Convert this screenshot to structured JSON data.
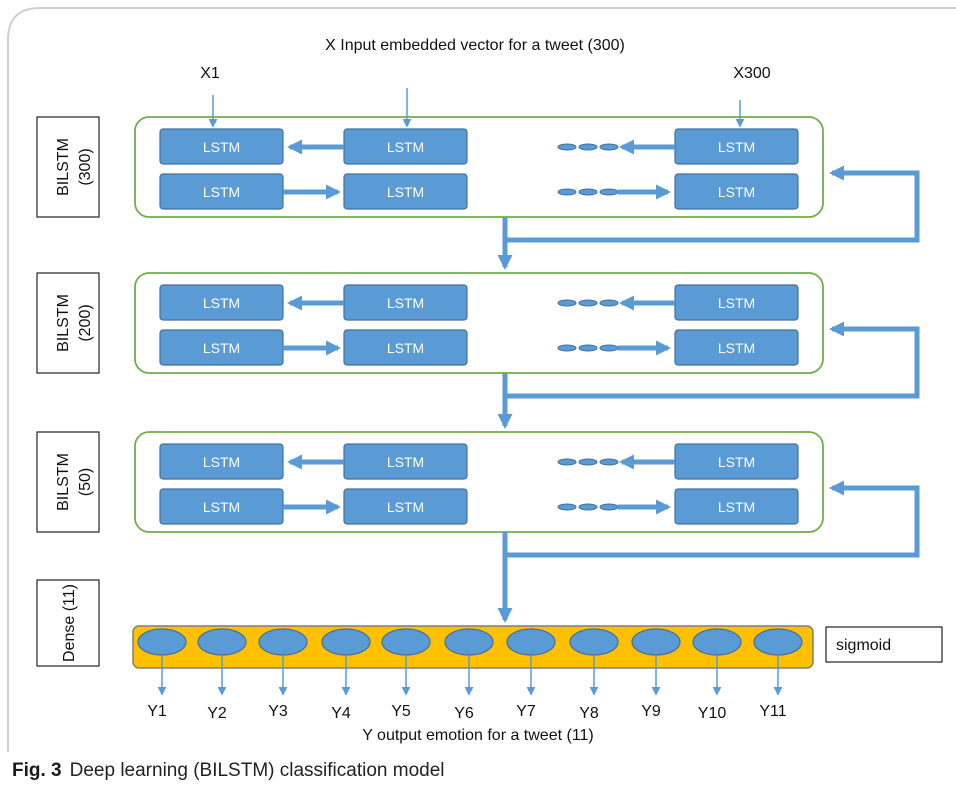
{
  "input": {
    "title": "X   Input embedded vector for a tweet (300)",
    "x_first": "X1",
    "x_last": "X300"
  },
  "layers": [
    {
      "name": "BILSTM",
      "size": "(300)"
    },
    {
      "name": "BILSTM",
      "size": "(200)"
    },
    {
      "name": "BILSTM",
      "size": "(50)"
    }
  ],
  "lstm_label": "LSTM",
  "dense": {
    "label": "Dense (11)",
    "activation": "sigmoid"
  },
  "outputs": [
    "Y1",
    "Y2",
    "Y3",
    "Y4",
    "Y5",
    "Y6",
    "Y7",
    "Y8",
    "Y9",
    "Y10",
    "Y11"
  ],
  "output_title": "Y   output emotion for a tweet (11)",
  "caption": {
    "fig": "Fig. 3",
    "text": "Deep learning (BILSTM) classification model"
  },
  "colors": {
    "lstm_fill": "#5b9bd5",
    "lstm_stroke": "#41719c",
    "arrow": "#5b9bd5",
    "block_stroke": "#70ad47",
    "dense_fill": "#ffc000",
    "dense_stroke": "#7f7f7f"
  }
}
